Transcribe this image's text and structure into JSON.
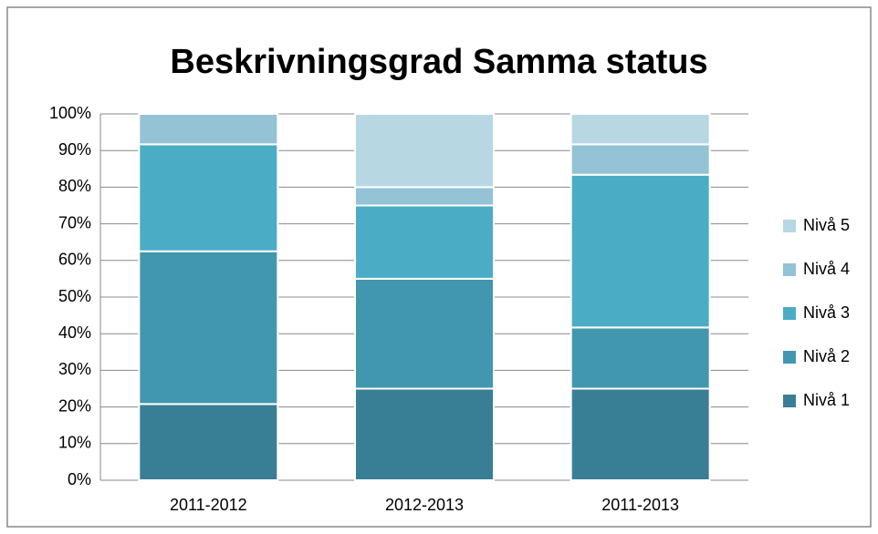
{
  "chart_data": {
    "type": "stacked_bar",
    "title": "Beskrivningsgrad Samma status",
    "categories": [
      "2011-2012",
      "2012-2013",
      "2011-2013"
    ],
    "series": [
      {
        "name": "Nivå 1",
        "color": "#387f96",
        "values": [
          20.8,
          25,
          25
        ]
      },
      {
        "name": "Nivå 2",
        "color": "#4297b0",
        "values": [
          41.7,
          30,
          16.7
        ]
      },
      {
        "name": "Nivå 3",
        "color": "#4bacc6",
        "values": [
          29.2,
          20,
          41.7
        ]
      },
      {
        "name": "Nivå 4",
        "color": "#93c3d5",
        "values": [
          8.3,
          5,
          8.3
        ]
      },
      {
        "name": "Nivå 5",
        "color": "#b7d7e3",
        "values": [
          0,
          20,
          8.3
        ]
      }
    ],
    "ylim": [
      0,
      100
    ],
    "yticks": [
      {
        "value": 0,
        "label": "0%"
      },
      {
        "value": 10,
        "label": "10%"
      },
      {
        "value": 20,
        "label": "20%"
      },
      {
        "value": 30,
        "label": "30%"
      },
      {
        "value": 40,
        "label": "40%"
      },
      {
        "value": 50,
        "label": "50%"
      },
      {
        "value": 60,
        "label": "60%"
      },
      {
        "value": 70,
        "label": "70%"
      },
      {
        "value": 80,
        "label": "80%"
      },
      {
        "value": 90,
        "label": "90%"
      },
      {
        "value": 100,
        "label": "100%"
      }
    ],
    "grid": true,
    "legend": "right"
  }
}
